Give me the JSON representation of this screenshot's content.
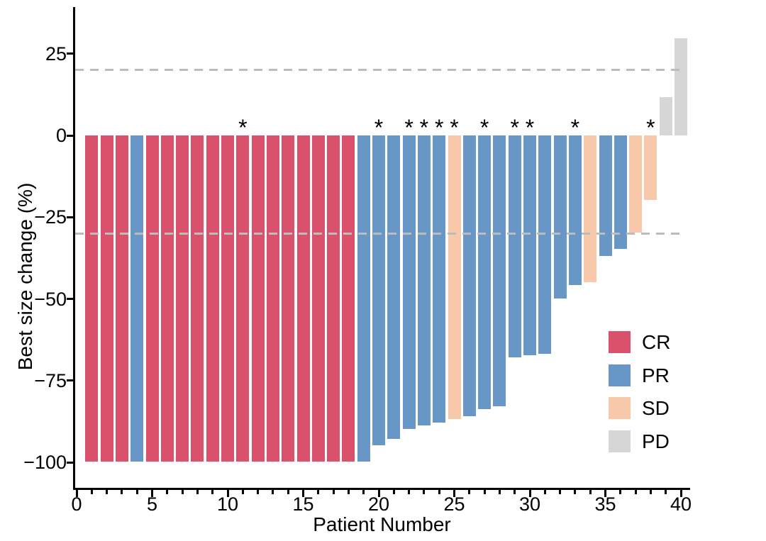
{
  "chart_data": {
    "type": "bar",
    "subtype": "waterfall",
    "title": "",
    "xlabel": "Patient Number",
    "ylabel": "Best size change (%)",
    "ylim": [
      -100,
      30
    ],
    "grid": false,
    "annotation_symbol": "*",
    "reference_lines": [
      20,
      -30
    ],
    "reference_line_color": "#BCBCBC",
    "yticks": [
      {
        "value": 25,
        "label": "25"
      },
      {
        "value": 0,
        "label": "0"
      },
      {
        "value": -25,
        "label": "−25"
      },
      {
        "value": -50,
        "label": "−50"
      },
      {
        "value": -75,
        "label": "−75"
      },
      {
        "value": -100,
        "label": "−100"
      }
    ],
    "xticks_major": [
      {
        "value": 0,
        "label": "0"
      },
      {
        "value": 5,
        "label": "5"
      },
      {
        "value": 10,
        "label": "10"
      },
      {
        "value": 15,
        "label": "15"
      },
      {
        "value": 20,
        "label": "20"
      },
      {
        "value": 25,
        "label": "25"
      },
      {
        "value": 30,
        "label": "30"
      },
      {
        "value": 35,
        "label": "35"
      },
      {
        "value": 40,
        "label": "40"
      }
    ],
    "colors": {
      "CR": "#D9516A",
      "PR": "#6896C6",
      "SD": "#F8C8AA",
      "PD": "#D6D6D6"
    },
    "legend": {
      "position": "right-lower",
      "entries": [
        {
          "label": "CR",
          "color_key": "CR"
        },
        {
          "label": "PR",
          "color_key": "PR"
        },
        {
          "label": "SD",
          "color_key": "SD"
        },
        {
          "label": "PD",
          "color_key": "PD"
        }
      ]
    },
    "patients": [
      {
        "patient": 1,
        "change_pct": -100,
        "response": "CR",
        "starred": false
      },
      {
        "patient": 2,
        "change_pct": -100,
        "response": "CR",
        "starred": false
      },
      {
        "patient": 3,
        "change_pct": -100,
        "response": "CR",
        "starred": false
      },
      {
        "patient": 4,
        "change_pct": -100,
        "response": "PR",
        "starred": false
      },
      {
        "patient": 5,
        "change_pct": -100,
        "response": "CR",
        "starred": false
      },
      {
        "patient": 6,
        "change_pct": -100,
        "response": "CR",
        "starred": false
      },
      {
        "patient": 7,
        "change_pct": -100,
        "response": "CR",
        "starred": false
      },
      {
        "patient": 8,
        "change_pct": -100,
        "response": "CR",
        "starred": false
      },
      {
        "patient": 9,
        "change_pct": -100,
        "response": "CR",
        "starred": false
      },
      {
        "patient": 10,
        "change_pct": -100,
        "response": "CR",
        "starred": false
      },
      {
        "patient": 11,
        "change_pct": -100,
        "response": "CR",
        "starred": true
      },
      {
        "patient": 12,
        "change_pct": -100,
        "response": "CR",
        "starred": false
      },
      {
        "patient": 13,
        "change_pct": -100,
        "response": "CR",
        "starred": false
      },
      {
        "patient": 14,
        "change_pct": -100,
        "response": "CR",
        "starred": false
      },
      {
        "patient": 15,
        "change_pct": -100,
        "response": "CR",
        "starred": false
      },
      {
        "patient": 16,
        "change_pct": -100,
        "response": "CR",
        "starred": false
      },
      {
        "patient": 17,
        "change_pct": -100,
        "response": "CR",
        "starred": false
      },
      {
        "patient": 18,
        "change_pct": -100,
        "response": "CR",
        "starred": false
      },
      {
        "patient": 19,
        "change_pct": -100,
        "response": "PR",
        "starred": false
      },
      {
        "patient": 20,
        "change_pct": -95,
        "response": "PR",
        "starred": true
      },
      {
        "patient": 21,
        "change_pct": -93,
        "response": "PR",
        "starred": false
      },
      {
        "patient": 22,
        "change_pct": -90,
        "response": "PR",
        "starred": true
      },
      {
        "patient": 23,
        "change_pct": -89,
        "response": "PR",
        "starred": true
      },
      {
        "patient": 24,
        "change_pct": -88,
        "response": "PR",
        "starred": true
      },
      {
        "patient": 25,
        "change_pct": -87,
        "response": "SD",
        "starred": true
      },
      {
        "patient": 26,
        "change_pct": -86,
        "response": "PR",
        "starred": false
      },
      {
        "patient": 27,
        "change_pct": -84,
        "response": "PR",
        "starred": true
      },
      {
        "patient": 28,
        "change_pct": -83,
        "response": "PR",
        "starred": false
      },
      {
        "patient": 29,
        "change_pct": -68,
        "response": "PR",
        "starred": true
      },
      {
        "patient": 30,
        "change_pct": -67.5,
        "response": "PR",
        "starred": true
      },
      {
        "patient": 31,
        "change_pct": -67,
        "response": "PR",
        "starred": false
      },
      {
        "patient": 32,
        "change_pct": -50,
        "response": "PR",
        "starred": false
      },
      {
        "patient": 33,
        "change_pct": -46,
        "response": "PR",
        "starred": true
      },
      {
        "patient": 34,
        "change_pct": -45,
        "response": "SD",
        "starred": false
      },
      {
        "patient": 35,
        "change_pct": -37,
        "response": "PR",
        "starred": false
      },
      {
        "patient": 36,
        "change_pct": -35,
        "response": "PR",
        "starred": false
      },
      {
        "patient": 37,
        "change_pct": -30,
        "response": "SD",
        "starred": false
      },
      {
        "patient": 38,
        "change_pct": -20,
        "response": "SD",
        "starred": true
      },
      {
        "patient": 39,
        "change_pct": 12,
        "response": "PD",
        "starred": false
      },
      {
        "patient": 40,
        "change_pct": 30,
        "response": "PD",
        "starred": false
      }
    ]
  }
}
